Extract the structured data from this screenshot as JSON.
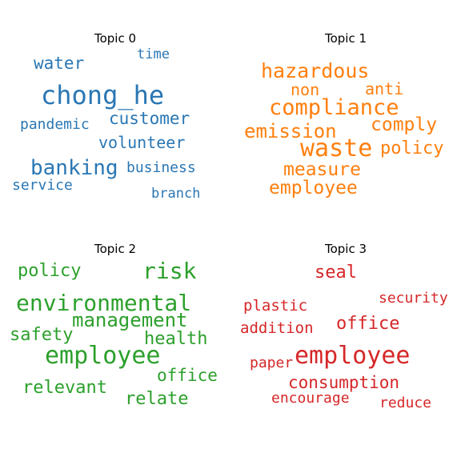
{
  "chart_data": [
    {
      "type": "wordcloud",
      "title": "Topic 0",
      "color": "#2a77b4",
      "words": [
        {
          "text": "chong_he",
          "weight": 1.0
        },
        {
          "text": "banking",
          "weight": 0.8
        },
        {
          "text": "customer",
          "weight": 0.62
        },
        {
          "text": "water",
          "weight": 0.62
        },
        {
          "text": "volunteer",
          "weight": 0.6
        },
        {
          "text": "business",
          "weight": 0.52
        },
        {
          "text": "service",
          "weight": 0.52
        },
        {
          "text": "pandemic",
          "weight": 0.52
        },
        {
          "text": "branch",
          "weight": 0.5
        },
        {
          "text": "time",
          "weight": 0.5
        }
      ]
    },
    {
      "type": "wordcloud",
      "title": "Topic 1",
      "color": "#ff7f0e",
      "words": [
        {
          "text": "waste",
          "weight": 1.0
        },
        {
          "text": "compliance",
          "weight": 0.9
        },
        {
          "text": "hazardous",
          "weight": 0.85
        },
        {
          "text": "emission",
          "weight": 0.8
        },
        {
          "text": "measure",
          "weight": 0.77
        },
        {
          "text": "comply",
          "weight": 0.77
        },
        {
          "text": "employee",
          "weight": 0.77
        },
        {
          "text": "policy",
          "weight": 0.75
        },
        {
          "text": "anti",
          "weight": 0.65
        },
        {
          "text": "non",
          "weight": 0.65
        }
      ]
    },
    {
      "type": "wordcloud",
      "title": "Topic 2",
      "color": "#2ca02c",
      "words": [
        {
          "text": "employee",
          "weight": 1.0
        },
        {
          "text": "environmental",
          "weight": 0.95
        },
        {
          "text": "risk",
          "weight": 0.95
        },
        {
          "text": "management",
          "weight": 0.8
        },
        {
          "text": "relevant",
          "weight": 0.72
        },
        {
          "text": "policy",
          "weight": 0.72
        },
        {
          "text": "relate",
          "weight": 0.72
        },
        {
          "text": "health",
          "weight": 0.7
        },
        {
          "text": "safety",
          "weight": 0.7
        },
        {
          "text": "office",
          "weight": 0.68
        }
      ]
    },
    {
      "type": "wordcloud",
      "title": "Topic 3",
      "color": "#d62728",
      "words": [
        {
          "text": "employee",
          "weight": 1.0
        },
        {
          "text": "office",
          "weight": 0.75
        },
        {
          "text": "seal",
          "weight": 0.75
        },
        {
          "text": "consumption",
          "weight": 0.7
        },
        {
          "text": "addition",
          "weight": 0.65
        },
        {
          "text": "plastic",
          "weight": 0.65
        },
        {
          "text": "encourage",
          "weight": 0.62
        },
        {
          "text": "security",
          "weight": 0.62
        },
        {
          "text": "reduce",
          "weight": 0.62
        },
        {
          "text": "paper",
          "weight": 0.6
        }
      ]
    }
  ]
}
